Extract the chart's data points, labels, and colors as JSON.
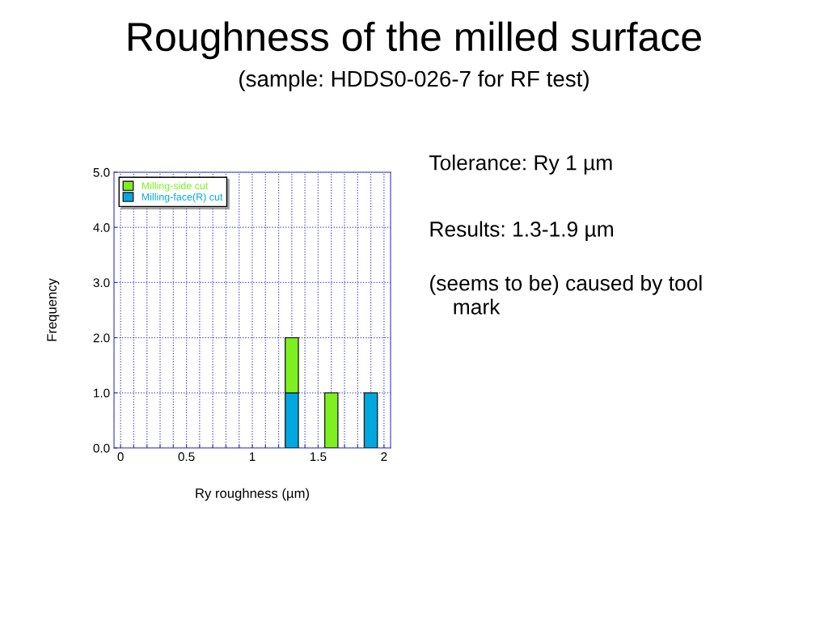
{
  "chart_data": {
    "type": "bar",
    "title": "Roughness of the milled surface",
    "subtitle": "(sample: HDDS0-026-7 for RF test)",
    "xlabel": "Ry roughness (µm)",
    "ylabel": "Frequency",
    "x": [
      1.3,
      1.6,
      1.9
    ],
    "stacked": true,
    "series": [
      {
        "name": "Milling-face(R) cut",
        "color": "#00a8e0",
        "values": [
          1,
          0,
          1
        ]
      },
      {
        "name": "Milling-side cut",
        "color": "#7ef020",
        "values": [
          1,
          1,
          0
        ]
      }
    ],
    "xlim": [
      -0.05,
      2.05
    ],
    "xticks": [
      0,
      {
        "value": 0.1,
        "label": null
      },
      {
        "value": 0.2,
        "label": null
      },
      {
        "value": 0.3,
        "label": null
      },
      {
        "value": 0.4,
        "label": null
      },
      0.5,
      {
        "value": 0.6,
        "label": null
      },
      {
        "value": 0.7,
        "label": null
      },
      {
        "value": 0.8,
        "label": null
      },
      {
        "value": 0.9,
        "label": null
      },
      1,
      {
        "value": 1.1,
        "label": null
      },
      {
        "value": 1.2,
        "label": null
      },
      {
        "value": 1.3,
        "label": null
      },
      {
        "value": 1.4,
        "label": null
      },
      1.5,
      {
        "value": 1.6,
        "label": null
      },
      {
        "value": 1.7,
        "label": null
      },
      {
        "value": 1.8,
        "label": null
      },
      {
        "value": 1.9,
        "label": null
      },
      2
    ],
    "ylim": [
      0,
      5
    ],
    "yticks": [
      {
        "value": 0,
        "label": "0.0"
      },
      {
        "value": 1,
        "label": "1.0"
      },
      {
        "value": 2,
        "label": "2.0"
      },
      {
        "value": 3,
        "label": "3.0"
      },
      {
        "value": 4,
        "label": "4.0"
      },
      {
        "value": 5,
        "label": "5.0"
      }
    ],
    "grid": true,
    "legend": "top left",
    "annotations": [
      "Tolerance: Ry 1 µm",
      "Results: 1.3-1.9 µm",
      "(seems to be) caused by tool\n    mark"
    ]
  }
}
